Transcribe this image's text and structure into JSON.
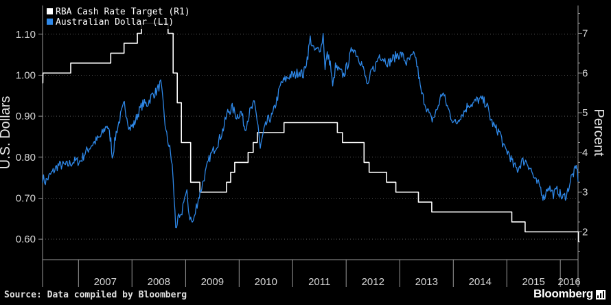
{
  "chart_data": {
    "type": "line",
    "title": "",
    "xlabel": "",
    "ylabel_left": "U.S. Dollars",
    "ylabel_right": "Percent",
    "x_range": [
      "2006-05-01",
      "2016-05-01"
    ],
    "ylim_left": [
      0.55,
      1.17
    ],
    "ylim_right": [
      1.3,
      7.7
    ],
    "yticks_left": [
      "0.60",
      "0.70",
      "0.80",
      "0.90",
      "1.00",
      "1.10"
    ],
    "yticks_right": [
      "2",
      "3",
      "4",
      "5",
      "6",
      "7"
    ],
    "x_tick_labels": [
      "2007",
      "2008",
      "2009",
      "2010",
      "2011",
      "2012",
      "2013",
      "2014",
      "2015",
      "2016"
    ],
    "grid": "horizontal dotted",
    "legend_position": "top-left",
    "colors": {
      "aud": "#2e88e8",
      "rba": "#ffffff"
    },
    "series": [
      {
        "name": "RBA Cash Rate Target (R1)",
        "axis": "right",
        "color": "#ffffff",
        "step": true,
        "points": [
          [
            "2006-05-01",
            5.75
          ],
          [
            "2006-05-03",
            5.75
          ],
          [
            "2006-05-04",
            6.0
          ],
          [
            "2006-08-03",
            6.0
          ],
          [
            "2006-08-03",
            6.0
          ],
          [
            "2006-11-09",
            6.0
          ],
          [
            "2006-11-09",
            6.25
          ],
          [
            "2007-08-09",
            6.25
          ],
          [
            "2007-08-09",
            6.5
          ],
          [
            "2007-11-08",
            6.5
          ],
          [
            "2007-11-08",
            6.75
          ],
          [
            "2008-02-07",
            6.75
          ],
          [
            "2008-02-07",
            7.0
          ],
          [
            "2008-03-06",
            7.0
          ],
          [
            "2008-03-06",
            7.25
          ],
          [
            "2008-09-03",
            7.25
          ],
          [
            "2008-09-03",
            7.0
          ],
          [
            "2008-10-08",
            7.0
          ],
          [
            "2008-10-08",
            6.0
          ],
          [
            "2008-11-05",
            6.0
          ],
          [
            "2008-11-05",
            5.25
          ],
          [
            "2008-12-03",
            5.25
          ],
          [
            "2008-12-03",
            4.25
          ],
          [
            "2009-02-04",
            4.25
          ],
          [
            "2009-02-04",
            3.25
          ],
          [
            "2009-04-08",
            3.25
          ],
          [
            "2009-04-08",
            3.0
          ],
          [
            "2009-10-07",
            3.0
          ],
          [
            "2009-10-07",
            3.25
          ],
          [
            "2009-11-04",
            3.25
          ],
          [
            "2009-11-04",
            3.5
          ],
          [
            "2009-12-02",
            3.5
          ],
          [
            "2009-12-02",
            3.75
          ],
          [
            "2010-03-03",
            3.75
          ],
          [
            "2010-03-03",
            4.0
          ],
          [
            "2010-04-07",
            4.0
          ],
          [
            "2010-04-07",
            4.25
          ],
          [
            "2010-05-05",
            4.25
          ],
          [
            "2010-05-05",
            4.5
          ],
          [
            "2010-11-03",
            4.5
          ],
          [
            "2010-11-03",
            4.75
          ],
          [
            "2011-11-02",
            4.75
          ],
          [
            "2011-11-02",
            4.5
          ],
          [
            "2011-12-07",
            4.5
          ],
          [
            "2011-12-07",
            4.25
          ],
          [
            "2012-05-02",
            4.25
          ],
          [
            "2012-05-02",
            3.75
          ],
          [
            "2012-06-06",
            3.75
          ],
          [
            "2012-06-06",
            3.5
          ],
          [
            "2012-10-03",
            3.5
          ],
          [
            "2012-10-03",
            3.25
          ],
          [
            "2012-12-05",
            3.25
          ],
          [
            "2012-12-05",
            3.0
          ],
          [
            "2013-05-08",
            3.0
          ],
          [
            "2013-05-08",
            2.75
          ],
          [
            "2013-08-07",
            2.75
          ],
          [
            "2013-08-07",
            2.5
          ],
          [
            "2015-02-04",
            2.5
          ],
          [
            "2015-02-04",
            2.25
          ],
          [
            "2015-05-06",
            2.25
          ],
          [
            "2015-05-06",
            2.0
          ],
          [
            "2016-05-04",
            2.0
          ],
          [
            "2016-05-04",
            1.75
          ]
        ]
      },
      {
        "name": "Australian Dollar (L1)",
        "axis": "left",
        "color": "#2e88e8",
        "step": false,
        "noise": 0.012,
        "points": [
          [
            "2006-05-01",
            0.75
          ],
          [
            "2006-05-20",
            0.74
          ],
          [
            "2006-07-01",
            0.76
          ],
          [
            "2006-08-15",
            0.78
          ],
          [
            "2006-10-15",
            0.78
          ],
          [
            "2006-12-01",
            0.79
          ],
          [
            "2007-01-15",
            0.79
          ],
          [
            "2007-02-15",
            0.81
          ],
          [
            "2007-04-01",
            0.83
          ],
          [
            "2007-05-01",
            0.84
          ],
          [
            "2007-06-01",
            0.85
          ],
          [
            "2007-07-15",
            0.88
          ],
          [
            "2007-08-10",
            0.84
          ],
          [
            "2007-08-20",
            0.8
          ],
          [
            "2007-09-15",
            0.86
          ],
          [
            "2007-10-15",
            0.9
          ],
          [
            "2007-11-10",
            0.93
          ],
          [
            "2007-12-15",
            0.87
          ],
          [
            "2008-01-15",
            0.88
          ],
          [
            "2008-02-15",
            0.91
          ],
          [
            "2008-03-15",
            0.93
          ],
          [
            "2008-04-15",
            0.93
          ],
          [
            "2008-05-15",
            0.95
          ],
          [
            "2008-06-15",
            0.96
          ],
          [
            "2008-07-15",
            0.98
          ],
          [
            "2008-08-01",
            0.93
          ],
          [
            "2008-08-20",
            0.86
          ],
          [
            "2008-09-15",
            0.82
          ],
          [
            "2008-10-01",
            0.78
          ],
          [
            "2008-10-15",
            0.7
          ],
          [
            "2008-10-25",
            0.63
          ],
          [
            "2008-11-15",
            0.65
          ],
          [
            "2008-12-01",
            0.65
          ],
          [
            "2008-12-20",
            0.7
          ],
          [
            "2009-01-10",
            0.71
          ],
          [
            "2009-01-25",
            0.66
          ],
          [
            "2009-02-15",
            0.64
          ],
          [
            "2009-03-01",
            0.65
          ],
          [
            "2009-03-15",
            0.68
          ],
          [
            "2009-04-15",
            0.72
          ],
          [
            "2009-05-15",
            0.76
          ],
          [
            "2009-06-15",
            0.8
          ],
          [
            "2009-07-15",
            0.82
          ],
          [
            "2009-08-15",
            0.84
          ],
          [
            "2009-09-15",
            0.87
          ],
          [
            "2009-10-15",
            0.91
          ],
          [
            "2009-11-15",
            0.92
          ],
          [
            "2009-12-15",
            0.9
          ],
          [
            "2010-01-15",
            0.91
          ],
          [
            "2010-02-10",
            0.87
          ],
          [
            "2010-03-15",
            0.91
          ],
          [
            "2010-04-15",
            0.93
          ],
          [
            "2010-05-10",
            0.88
          ],
          [
            "2010-05-25",
            0.82
          ],
          [
            "2010-06-10",
            0.85
          ],
          [
            "2010-06-25",
            0.87
          ],
          [
            "2010-07-15",
            0.89
          ],
          [
            "2010-08-15",
            0.9
          ],
          [
            "2010-09-15",
            0.94
          ],
          [
            "2010-10-15",
            0.98
          ],
          [
            "2010-11-15",
            0.99
          ],
          [
            "2010-12-15",
            1.0
          ],
          [
            "2011-01-15",
            1.0
          ],
          [
            "2011-02-15",
            1.01
          ],
          [
            "2011-03-15",
            1.0
          ],
          [
            "2011-04-15",
            1.05
          ],
          [
            "2011-05-01",
            1.09
          ],
          [
            "2011-05-25",
            1.06
          ],
          [
            "2011-06-15",
            1.06
          ],
          [
            "2011-07-15",
            1.07
          ],
          [
            "2011-07-28",
            1.1
          ],
          [
            "2011-08-10",
            1.02
          ],
          [
            "2011-08-25",
            1.05
          ],
          [
            "2011-09-15",
            1.03
          ],
          [
            "2011-10-01",
            0.97
          ],
          [
            "2011-10-20",
            1.02
          ],
          [
            "2011-11-15",
            1.01
          ],
          [
            "2011-12-15",
            1.0
          ],
          [
            "2012-01-15",
            1.03
          ],
          [
            "2012-02-15",
            1.07
          ],
          [
            "2012-03-15",
            1.05
          ],
          [
            "2012-04-15",
            1.03
          ],
          [
            "2012-05-15",
            0.99
          ],
          [
            "2012-06-01",
            0.97
          ],
          [
            "2012-06-20",
            1.01
          ],
          [
            "2012-07-15",
            1.02
          ],
          [
            "2012-08-15",
            1.05
          ],
          [
            "2012-09-15",
            1.04
          ],
          [
            "2012-10-15",
            1.03
          ],
          [
            "2012-11-15",
            1.04
          ],
          [
            "2012-12-15",
            1.05
          ],
          [
            "2013-01-15",
            1.05
          ],
          [
            "2013-02-15",
            1.03
          ],
          [
            "2013-03-15",
            1.04
          ],
          [
            "2013-04-15",
            1.05
          ],
          [
            "2013-05-10",
            1.0
          ],
          [
            "2013-05-25",
            0.96
          ],
          [
            "2013-06-15",
            0.94
          ],
          [
            "2013-07-15",
            0.91
          ],
          [
            "2013-08-05",
            0.89
          ],
          [
            "2013-08-25",
            0.9
          ],
          [
            "2013-09-15",
            0.92
          ],
          [
            "2013-10-20",
            0.96
          ],
          [
            "2013-11-15",
            0.93
          ],
          [
            "2013-12-15",
            0.9
          ],
          [
            "2014-01-20",
            0.88
          ],
          [
            "2014-02-15",
            0.9
          ],
          [
            "2014-03-15",
            0.91
          ],
          [
            "2014-04-15",
            0.93
          ],
          [
            "2014-05-15",
            0.93
          ],
          [
            "2014-06-15",
            0.94
          ],
          [
            "2014-07-15",
            0.94
          ],
          [
            "2014-08-15",
            0.93
          ],
          [
            "2014-09-15",
            0.89
          ],
          [
            "2014-10-15",
            0.87
          ],
          [
            "2014-11-15",
            0.86
          ],
          [
            "2014-12-15",
            0.82
          ],
          [
            "2015-01-15",
            0.81
          ],
          [
            "2015-02-15",
            0.78
          ],
          [
            "2015-03-15",
            0.77
          ],
          [
            "2015-04-15",
            0.79
          ],
          [
            "2015-05-15",
            0.79
          ],
          [
            "2015-06-15",
            0.77
          ],
          [
            "2015-07-15",
            0.74
          ],
          [
            "2015-08-15",
            0.73
          ],
          [
            "2015-09-10",
            0.7
          ],
          [
            "2015-10-10",
            0.73
          ],
          [
            "2015-11-15",
            0.71
          ],
          [
            "2015-12-15",
            0.72
          ],
          [
            "2016-01-15",
            0.7
          ],
          [
            "2016-02-15",
            0.71
          ],
          [
            "2016-03-15",
            0.75
          ],
          [
            "2016-04-15",
            0.77
          ],
          [
            "2016-04-22",
            0.78
          ],
          [
            "2016-05-01",
            0.74
          ]
        ]
      }
    ]
  },
  "footer": {
    "source": "Source: Data compiled by Bloomberg",
    "brand": "Bloomberg"
  }
}
